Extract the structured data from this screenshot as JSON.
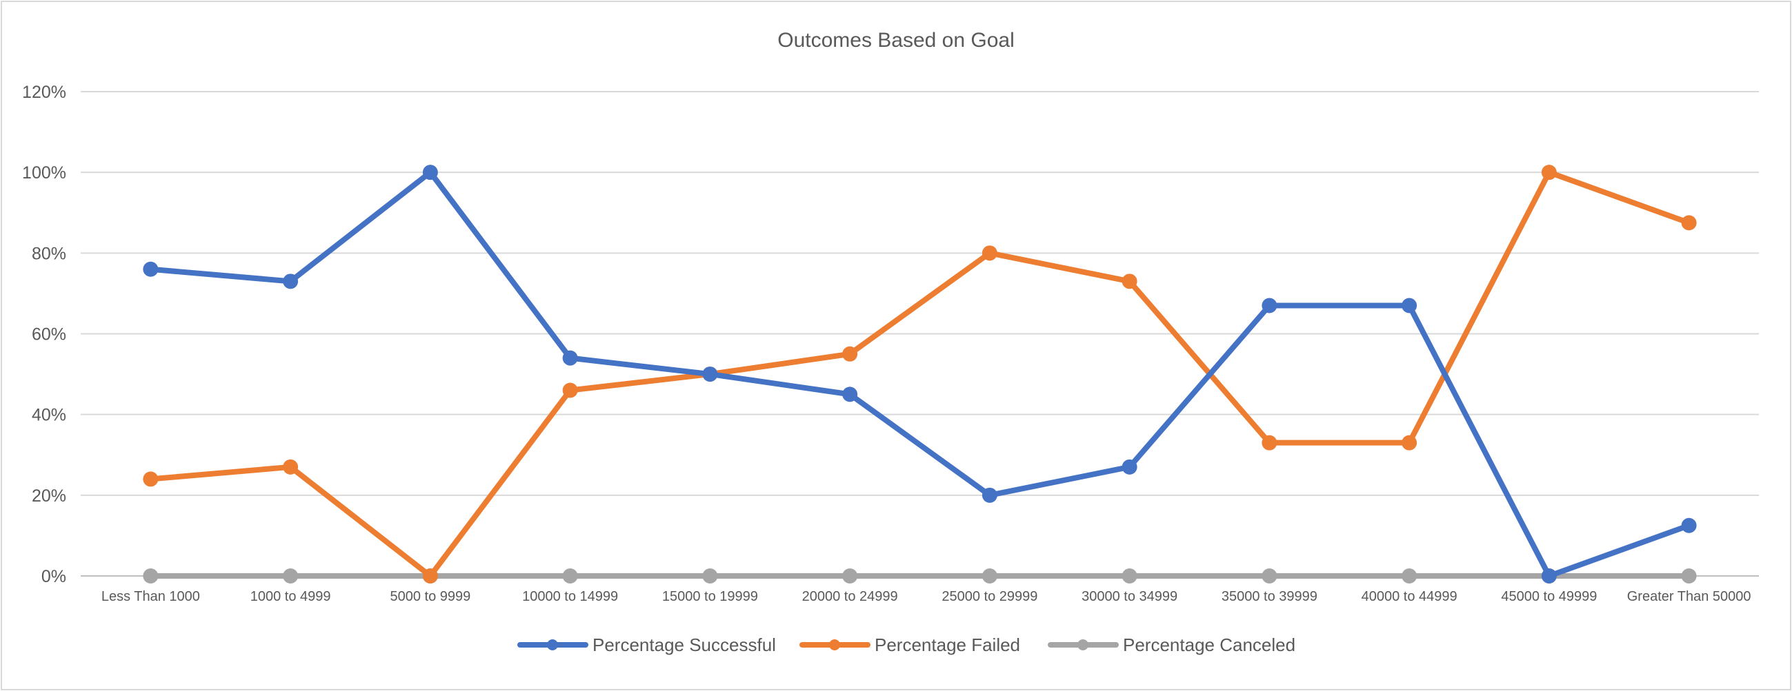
{
  "chart_data": {
    "type": "line",
    "title": "Outcomes Based on Goal",
    "xlabel": "",
    "ylabel": "",
    "categories": [
      "Less Than 1000",
      "1000 to 4999",
      "5000 to 9999",
      "10000 to 14999",
      "15000 to 19999",
      "20000 to 24999",
      "25000 to 29999",
      "30000 to 34999",
      "35000 to 39999",
      "40000 to 44999",
      "45000 to 49999",
      "Greater Than 50000"
    ],
    "ylim": [
      0,
      120
    ],
    "yticks": [
      0,
      20,
      40,
      60,
      80,
      100,
      120
    ],
    "ytick_labels": [
      "0%",
      "20%",
      "40%",
      "60%",
      "80%",
      "100%",
      "120%"
    ],
    "grid": true,
    "legend_position": "bottom",
    "series": [
      {
        "name": "Percentage Successful",
        "color": "#4472C4",
        "values": [
          76,
          73,
          100,
          54,
          50,
          45,
          20,
          27,
          67,
          67,
          0,
          12.5
        ]
      },
      {
        "name": "Percentage Failed",
        "color": "#ED7D31",
        "values": [
          24,
          27,
          0,
          46,
          50,
          55,
          80,
          73,
          33,
          33,
          100,
          87.5
        ]
      },
      {
        "name": "Percentage Canceled",
        "color": "#A5A5A5",
        "values": [
          0,
          0,
          0,
          0,
          0,
          0,
          0,
          0,
          0,
          0,
          0,
          0
        ]
      }
    ]
  }
}
